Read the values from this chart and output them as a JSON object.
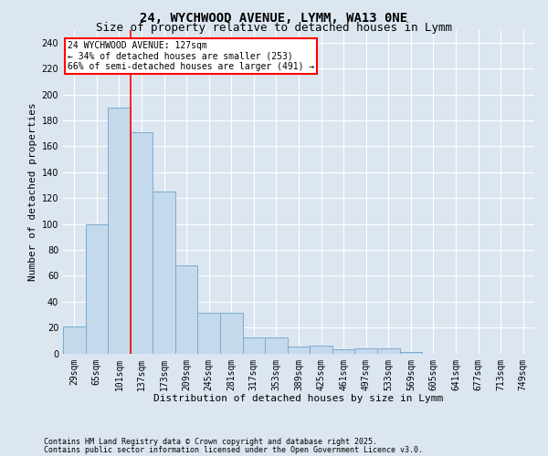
{
  "title1": "24, WYCHWOOD AVENUE, LYMM, WA13 0NE",
  "title2": "Size of property relative to detached houses in Lymm",
  "xlabel": "Distribution of detached houses by size in Lymm",
  "ylabel": "Number of detached properties",
  "categories": [
    "29sqm",
    "65sqm",
    "101sqm",
    "137sqm",
    "173sqm",
    "209sqm",
    "245sqm",
    "281sqm",
    "317sqm",
    "353sqm",
    "389sqm",
    "425sqm",
    "461sqm",
    "497sqm",
    "533sqm",
    "569sqm",
    "605sqm",
    "641sqm",
    "677sqm",
    "713sqm",
    "749sqm"
  ],
  "values": [
    21,
    100,
    190,
    171,
    125,
    68,
    31,
    31,
    12,
    12,
    5,
    6,
    3,
    4,
    4,
    1,
    0,
    0,
    0,
    0,
    0
  ],
  "bar_color": "#c5d9ed",
  "bar_edge_color": "#7aabce",
  "red_line_index": 3,
  "annotation_line1": "24 WYCHWOOD AVENUE: 127sqm",
  "annotation_line2": "← 34% of detached houses are smaller (253)",
  "annotation_line3": "66% of semi-detached houses are larger (491) →",
  "ylim": [
    0,
    250
  ],
  "yticks": [
    0,
    20,
    40,
    60,
    80,
    100,
    120,
    140,
    160,
    180,
    200,
    220,
    240
  ],
  "footnote1": "Contains HM Land Registry data © Crown copyright and database right 2025.",
  "footnote2": "Contains public sector information licensed under the Open Government Licence v3.0.",
  "background_color": "#dce6f1",
  "grid_color": "#ffffff",
  "title_fontsize": 10,
  "subtitle_fontsize": 9,
  "axis_label_fontsize": 8,
  "tick_fontsize": 7,
  "footnote_fontsize": 6
}
